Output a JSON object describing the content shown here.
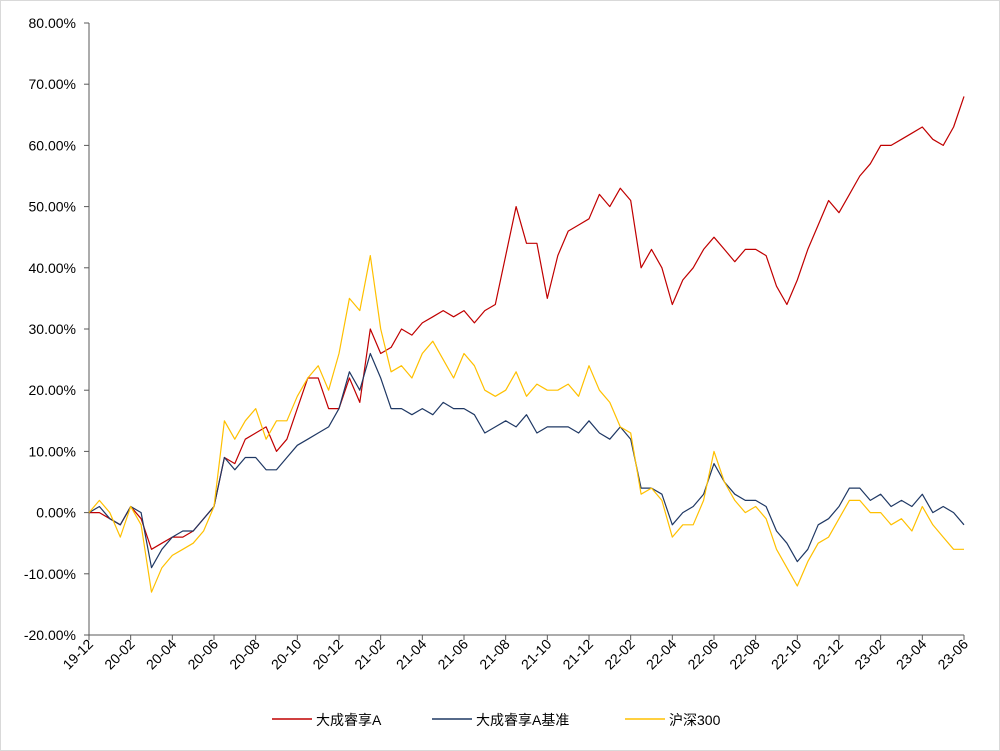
{
  "chart_data": {
    "type": "line",
    "title": "",
    "xlabel": "",
    "ylabel": "",
    "ylim": [
      -20,
      80
    ],
    "yticks": [
      "-20.00%",
      "-10.00%",
      "0.00%",
      "10.00%",
      "20.00%",
      "30.00%",
      "40.00%",
      "50.00%",
      "60.00%",
      "70.00%",
      "80.00%"
    ],
    "ytick_values": [
      -20,
      -10,
      0,
      10,
      20,
      30,
      40,
      50,
      60,
      70,
      80
    ],
    "xticks": [
      "19-12",
      "20-02",
      "20-04",
      "20-06",
      "20-08",
      "20-10",
      "20-12",
      "21-02",
      "21-04",
      "21-06",
      "21-08",
      "21-10",
      "21-12",
      "22-02",
      "22-04",
      "22-06",
      "22-08",
      "22-10",
      "22-12",
      "23-02",
      "23-04",
      "23-06"
    ],
    "x_unit": "months since 19-12",
    "xlim": [
      0,
      42
    ],
    "grid": false,
    "legend_position": "bottom",
    "x": [
      0,
      0.5,
      1,
      1.5,
      2,
      2.5,
      3,
      3.5,
      4,
      4.5,
      5,
      5.5,
      6,
      6.5,
      7,
      7.5,
      8,
      8.5,
      9,
      9.5,
      10,
      10.5,
      11,
      11.5,
      12,
      12.5,
      13,
      13.5,
      14,
      14.5,
      15,
      15.5,
      16,
      16.5,
      17,
      17.5,
      18,
      18.5,
      19,
      19.5,
      20,
      20.5,
      21,
      21.5,
      22,
      22.5,
      23,
      23.5,
      24,
      24.5,
      25,
      25.5,
      26,
      26.5,
      27,
      27.5,
      28,
      28.5,
      29,
      29.5,
      30,
      30.5,
      31,
      31.5,
      32,
      32.5,
      33,
      33.5,
      34,
      34.5,
      35,
      35.5,
      36,
      36.5,
      37,
      37.5,
      38,
      38.5,
      39,
      39.5,
      40,
      40.5,
      41,
      41.5,
      42
    ],
    "series": [
      {
        "name": "大成睿享A",
        "color": "#c00000",
        "values": [
          0,
          0,
          -1,
          -2,
          1,
          -1,
          -6,
          -5,
          -4,
          -4,
          -3,
          -1,
          1,
          9,
          8,
          12,
          13,
          14,
          10,
          12,
          17,
          22,
          22,
          17,
          17,
          22,
          18,
          30,
          26,
          27,
          30,
          29,
          31,
          32,
          33,
          32,
          33,
          31,
          33,
          34,
          42,
          50,
          44,
          44,
          35,
          42,
          46,
          47,
          48,
          52,
          50,
          53,
          51,
          40,
          43,
          40,
          34,
          38,
          40,
          43,
          45,
          43,
          41,
          43,
          43,
          42,
          37,
          34,
          38,
          43,
          47,
          51,
          49,
          52,
          55,
          57,
          60,
          60,
          61,
          62,
          63,
          61,
          60,
          63,
          68
        ]
      },
      {
        "name": "大成睿享A基准",
        "color": "#1f3864",
        "values": [
          0,
          1,
          -1,
          -2,
          1,
          0,
          -9,
          -6,
          -4,
          -3,
          -3,
          -1,
          1,
          9,
          7,
          9,
          9,
          7,
          7,
          9,
          11,
          12,
          13,
          14,
          17,
          23,
          20,
          26,
          22,
          17,
          17,
          16,
          17,
          16,
          18,
          17,
          17,
          16,
          13,
          14,
          15,
          14,
          16,
          13,
          14,
          14,
          14,
          13,
          15,
          13,
          12,
          14,
          12,
          4,
          4,
          3,
          -2,
          0,
          1,
          3,
          8,
          5,
          3,
          2,
          2,
          1,
          -3,
          -5,
          -8,
          -6,
          -2,
          -1,
          1,
          4,
          4,
          2,
          3,
          1,
          2,
          1,
          3,
          0,
          1,
          0,
          -2
        ]
      },
      {
        "name": "沪深300",
        "color": "#ffc000",
        "values": [
          0,
          2,
          0,
          -4,
          1,
          -2,
          -13,
          -9,
          -7,
          -6,
          -5,
          -3,
          1,
          15,
          12,
          15,
          17,
          12,
          15,
          15,
          19,
          22,
          24,
          20,
          26,
          35,
          33,
          42,
          30,
          23,
          24,
          22,
          26,
          28,
          25,
          22,
          26,
          24,
          20,
          19,
          20,
          23,
          19,
          21,
          20,
          20,
          21,
          19,
          24,
          20,
          18,
          14,
          13,
          3,
          4,
          2,
          -4,
          -2,
          -2,
          2,
          10,
          5,
          2,
          0,
          1,
          -1,
          -6,
          -9,
          -12,
          -8,
          -5,
          -4,
          -1,
          2,
          2,
          0,
          0,
          -2,
          -1,
          -3,
          1,
          -2,
          -4,
          -6,
          -6
        ]
      }
    ]
  }
}
